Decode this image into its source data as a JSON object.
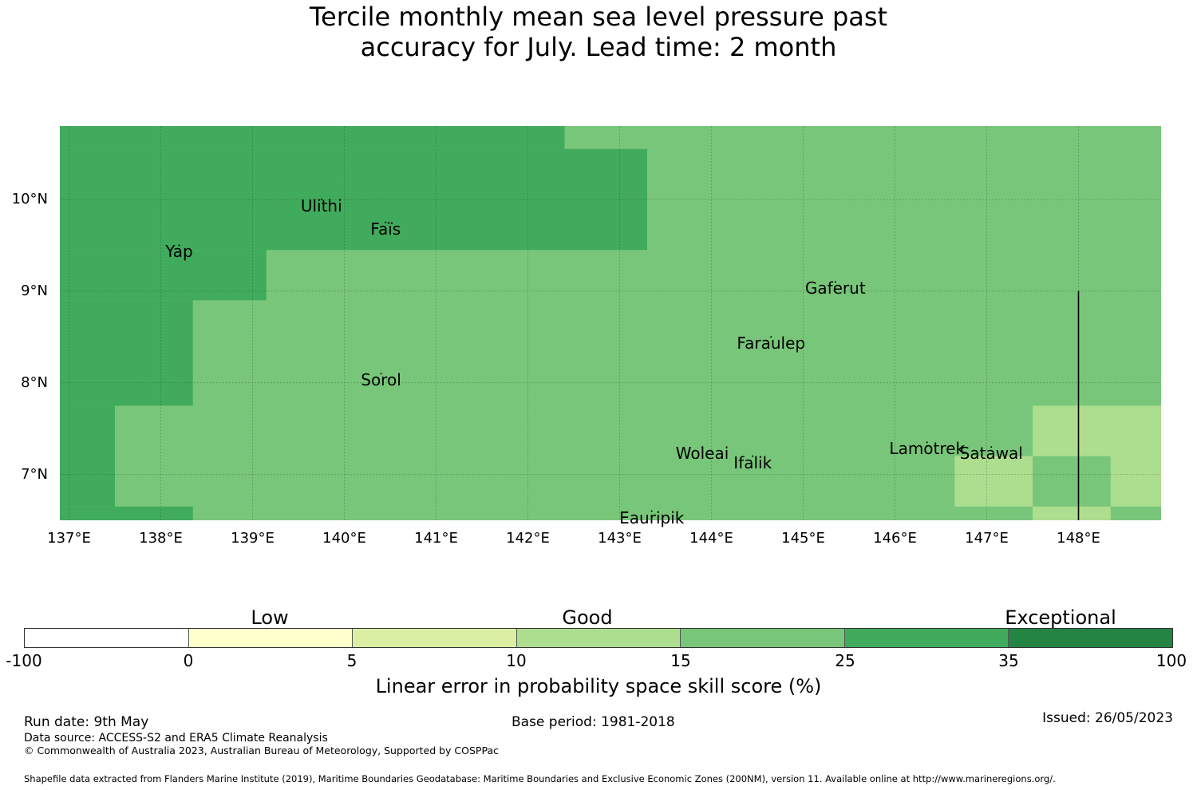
{
  "title": {
    "line1": "Tercile monthly mean sea level pressure past",
    "line2": "accuracy for July. Lead time: 2 month"
  },
  "map": {
    "lat_labels": [
      "10°N",
      "9°N",
      "8°N",
      "7°N"
    ],
    "lon_labels": [
      "137°E",
      "138°E",
      "139°E",
      "140°E",
      "141°E",
      "142°E",
      "143°E",
      "144°E",
      "145°E",
      "146°E",
      "147°E",
      "148°E"
    ],
    "extent": {
      "lon_min": 136.9,
      "lon_max": 148.9,
      "lat_min": 6.5,
      "lat_max": 10.8
    },
    "places": [
      {
        "name": "Ulithi",
        "lon": 139.75,
        "lat": 10.0
      },
      {
        "name": "Faïs",
        "lon": 140.45,
        "lat": 9.75
      },
      {
        "name": "Yap",
        "lon": 138.2,
        "lat": 9.5
      },
      {
        "name": "Gaferut",
        "lon": 145.35,
        "lat": 9.1
      },
      {
        "name": "Faraulep",
        "lon": 144.65,
        "lat": 8.5
      },
      {
        "name": "Sorol",
        "lon": 140.4,
        "lat": 8.1
      },
      {
        "name": "Woleai",
        "lon": 143.9,
        "lat": 7.3
      },
      {
        "name": "Ifalik",
        "lon": 144.45,
        "lat": 7.2
      },
      {
        "name": "Lamotrek",
        "lon": 146.35,
        "lat": 7.35
      },
      {
        "name": "Satawal",
        "lon": 147.05,
        "lat": 7.3
      },
      {
        "name": "Eauripik",
        "lon": 143.35,
        "lat": 6.6
      }
    ],
    "boundary_line": {
      "lon": 148.0,
      "lat_from": 6.5,
      "lat_to": 9.0
    },
    "skill_regions": [
      {
        "category": "25-35",
        "color": "#41ab5d",
        "lon": [
          136.9,
          142.4
        ],
        "lat": [
          10.55,
          10.8
        ]
      },
      {
        "category": "25-35",
        "color": "#41ab5d",
        "lon": [
          136.9,
          143.3
        ],
        "lat": [
          9.45,
          10.55
        ]
      },
      {
        "category": "25-35",
        "color": "#41ab5d",
        "lon": [
          136.9,
          139.15
        ],
        "lat": [
          8.9,
          9.45
        ]
      },
      {
        "category": "25-35",
        "color": "#41ab5d",
        "lon": [
          136.9,
          138.35
        ],
        "lat": [
          7.75,
          8.9
        ]
      },
      {
        "category": "25-35",
        "color": "#41ab5d",
        "lon": [
          136.9,
          137.5
        ],
        "lat": [
          6.65,
          7.75
        ]
      },
      {
        "category": "25-35",
        "color": "#41ab5d",
        "lon": [
          136.9,
          138.35
        ],
        "lat": [
          6.5,
          6.65
        ]
      },
      {
        "category": "10-15",
        "color": "#addd8e",
        "lon": [
          146.65,
          147.5
        ],
        "lat": [
          6.65,
          7.2
        ]
      },
      {
        "category": "10-15",
        "color": "#addd8e",
        "lon": [
          147.5,
          148.9
        ],
        "lat": [
          7.2,
          7.75
        ]
      },
      {
        "category": "10-15",
        "color": "#addd8e",
        "lon": [
          148.35,
          148.9
        ],
        "lat": [
          6.65,
          7.2
        ]
      },
      {
        "category": "10-15",
        "color": "#addd8e",
        "lon": [
          147.5,
          148.35
        ],
        "lat": [
          6.5,
          6.65
        ]
      }
    ],
    "background_category": {
      "category": "15-25",
      "color": "#78c679"
    }
  },
  "colorbar": {
    "categories": [
      "Low",
      "Good",
      "Exceptional"
    ],
    "ticks": [
      "-100",
      "0",
      "5",
      "10",
      "15",
      "25",
      "35",
      "100"
    ],
    "colors": [
      "#ffffff",
      "#ffffcc",
      "#d9f0a3",
      "#addd8e",
      "#78c679",
      "#41ab5d",
      "#238443"
    ],
    "label": "Linear error in probability space skill score (%)"
  },
  "footer": {
    "run_date": "Run date: 9th May",
    "base_period": "Base period: 1981-2018",
    "issued": "Issued: 26/05/2023",
    "data_source": "Data source: ACCESS-S2 and ERA5 Climate Reanalysis",
    "copyright": "© Commonwealth of Australia 2023, Australian Bureau of Meteorology, Supported by COSPPac",
    "shapefile": "Shapefile data extracted from Flanders Marine Institute (2019), Maritime Boundaries Geodatabase: Maritime Boundaries and Exclusive Economic Zones (200NM), version 11. Available online at http://www.marineregions.org/."
  }
}
